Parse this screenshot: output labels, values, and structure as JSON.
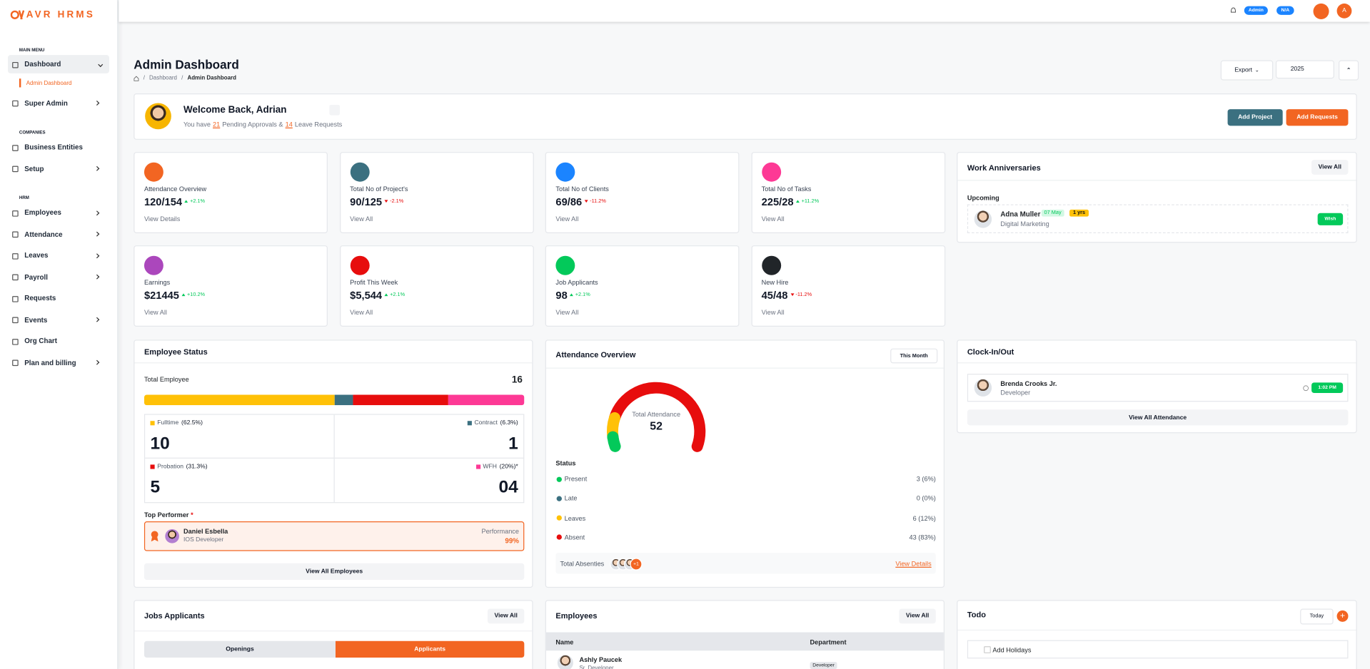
{
  "sidebar": {
    "brand": "AVR HRMS",
    "sections": [
      {
        "heading": "MAIN MENU",
        "items": [
          {
            "label": "Dashboard",
            "expandable": true,
            "active": true,
            "sub": [
              "Admin Dashboard"
            ]
          },
          {
            "label": "Super Admin",
            "expandable": true
          }
        ]
      },
      {
        "heading": "COMPANIES",
        "items": [
          {
            "label": "Business Entities",
            "expandable": false
          },
          {
            "label": "Setup",
            "expandable": true
          }
        ]
      },
      {
        "heading": "HRM",
        "items": [
          {
            "label": "Employees",
            "expandable": true
          },
          {
            "label": "Attendance",
            "expandable": true
          },
          {
            "label": "Leaves",
            "expandable": true
          },
          {
            "label": "Payroll",
            "expandable": true
          },
          {
            "label": "Requests",
            "expandable": false
          },
          {
            "label": "Events",
            "expandable": true
          },
          {
            "label": "Org Chart",
            "expandable": false
          },
          {
            "label": "Plan and billing",
            "expandable": true
          }
        ]
      }
    ]
  },
  "topbar": {
    "badges": [
      "Admin",
      "N/A"
    ],
    "avatar": "A"
  },
  "header": {
    "title": "Admin Dashboard",
    "breadcrumb": [
      "Dashboard",
      "Admin Dashboard"
    ],
    "export": "Export",
    "year": "2025"
  },
  "welcome": {
    "title": "Welcome Back, Adrian",
    "text": [
      "You have",
      "21",
      "Pending Approvals &",
      "14",
      "Leave Requests"
    ],
    "buttons": [
      "Add Project",
      "Add Requests"
    ]
  },
  "stats": [
    {
      "label": "Attendance Overview",
      "value": "120/154",
      "change": "+2.1%",
      "trend": "up",
      "link": "View Details",
      "color": "#f26522"
    },
    {
      "label": "Total No of Project's",
      "value": "90/125",
      "change": "-2.1%",
      "trend": "down",
      "link": "View All",
      "color": "#3b7080"
    },
    {
      "label": "Total No of Clients",
      "value": "69/86",
      "change": "-11.2%",
      "trend": "down",
      "link": "View All",
      "color": "#1b84ff"
    },
    {
      "label": "Total No of Tasks",
      "value": "225/28",
      "change": "+11.2%",
      "trend": "up",
      "link": "View All",
      "color": "#fd3995"
    },
    {
      "label": "Earnings",
      "value": "$21445",
      "change": "+10.2%",
      "trend": "up",
      "link": "View All",
      "color": "#ab47bc"
    },
    {
      "label": "Profit This Week",
      "value": "$5,544",
      "change": "+2.1%",
      "trend": "up",
      "link": "View All",
      "color": "#e70d0d"
    },
    {
      "label": "Job Applicants",
      "value": "98",
      "change": "+2.1%",
      "trend": "up",
      "link": "View All",
      "color": "#03c95a"
    },
    {
      "label": "New Hire",
      "value": "45/48",
      "change": "-11.2%",
      "trend": "down",
      "link": "View All",
      "color": "#212529"
    }
  ],
  "work_anniversaries": {
    "title": "Work Anniversaries",
    "view_all": "View All",
    "upcoming": "Upcoming",
    "people": [
      {
        "name": "Adna Muller",
        "date": "07 May",
        "years": "1 yrs",
        "role": "Digital Marketing",
        "action": "Wish"
      }
    ]
  },
  "employee_status": {
    "title": "Employee Status",
    "total_label": "Total Employee",
    "total": 16,
    "segments": [
      {
        "name": "Fulltime",
        "pct": "(62.5%)",
        "value": 10,
        "label": "10",
        "color": "#ffc107"
      },
      {
        "name": "Contract",
        "pct": "(6.3%)",
        "value": 1,
        "label": "1",
        "color": "#3b7080"
      },
      {
        "name": "Probation",
        "pct": "(31.3%)",
        "value": 5,
        "label": "5",
        "color": "#e70d0d"
      },
      {
        "name": "WFH",
        "pct": "(20%)*",
        "value": 4,
        "label": "04",
        "color": "#fd3995"
      }
    ],
    "top_performer": {
      "heading": "Top Performer",
      "mark": "*",
      "name": "Daniel Esbella",
      "role": "IOS Developer",
      "metric": "Performance",
      "score": "99%"
    },
    "view_all": "View All Employees"
  },
  "attendance_overview": {
    "title": "Attendance Overview",
    "period": "This Month",
    "center_label": "Total Attendance",
    "total": 52,
    "status_heading": "Status",
    "statuses": [
      {
        "name": "Present",
        "value": 3,
        "label": "3 (6%)",
        "color": "#03c95a"
      },
      {
        "name": "Late",
        "value": 0,
        "label": "0 (0%)",
        "color": "#3b7080"
      },
      {
        "name": "Leaves",
        "value": 6,
        "label": "6 (12%)",
        "color": "#ffc107"
      },
      {
        "name": "Absent",
        "value": 43,
        "label": "43 (83%)",
        "color": "#e70d0d"
      }
    ],
    "absentees_label": "Total Absenties",
    "absentees_more": "+1",
    "details": "View Details"
  },
  "clock": {
    "title": "Clock-In/Out",
    "person": {
      "name": "Brenda Crooks Jr.",
      "role": "Developer",
      "time": "1:02 PM"
    },
    "view_all": "View All Attendance"
  },
  "jobs": {
    "title": "Jobs Applicants",
    "view_all": "View All",
    "tabs": [
      "Openings",
      "Applicants"
    ]
  },
  "employees": {
    "title": "Employees",
    "view_all": "View All",
    "columns": [
      "Name",
      "Department"
    ],
    "rows": [
      {
        "name": "Ashly Paucek",
        "role": "Sr. Developer",
        "department": "Developer"
      }
    ]
  },
  "todo": {
    "title": "Todo",
    "filter": "Today",
    "items": [
      "Add Holidays"
    ]
  }
}
